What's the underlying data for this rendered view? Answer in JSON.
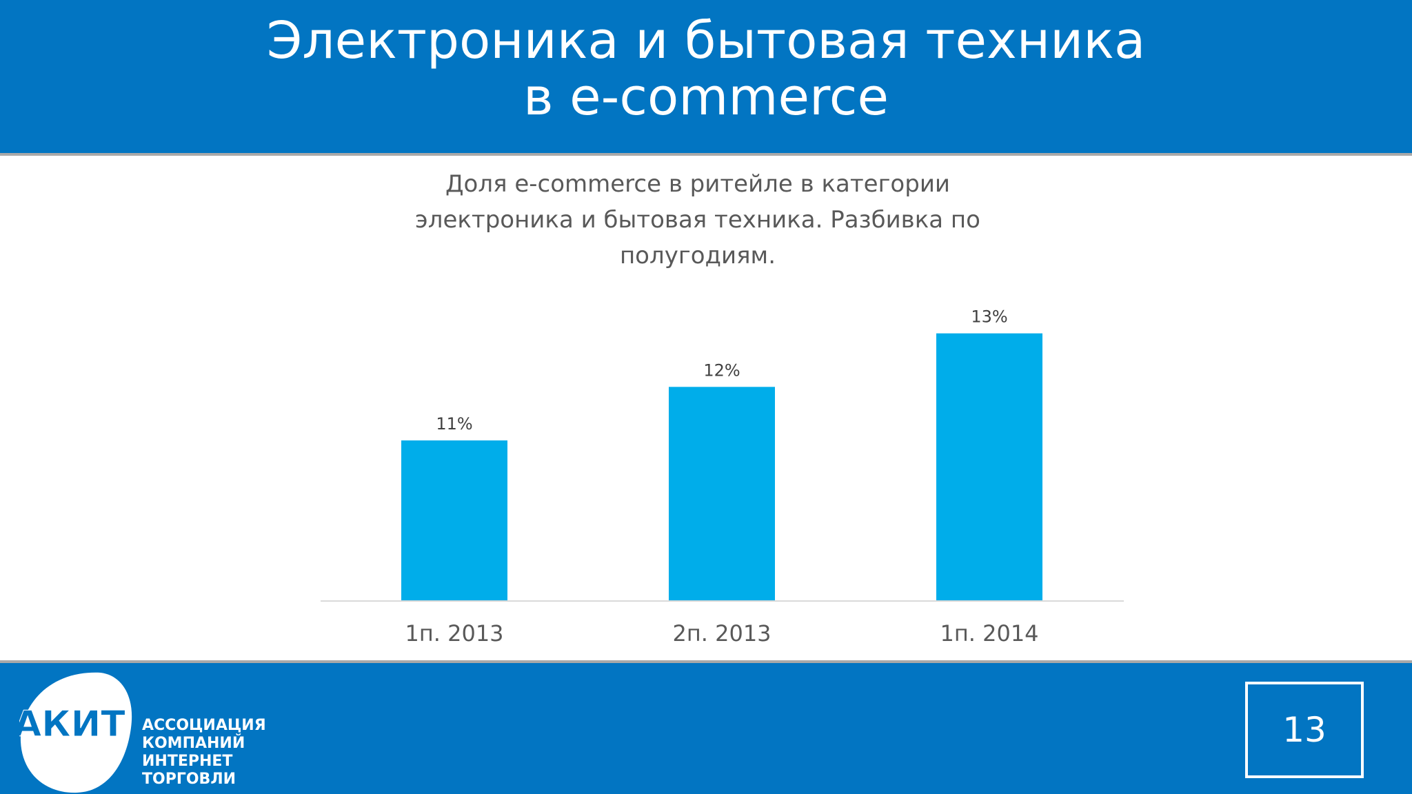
{
  "slide": {
    "title_line1": "Электроника и бытовая техника",
    "title_line2": "в e-commerce",
    "page_number": "13"
  },
  "logo": {
    "abbr": "АКИТ",
    "line1": "АССОЦИАЦИЯ",
    "line2": "КОМПАНИЙ",
    "line3": "ИНТЕРНЕТ",
    "line4": "ТОРГОВЛИ"
  },
  "colors": {
    "brand_blue": "#0275c2",
    "bar": "#00adea",
    "divider": "#a9a9a9"
  },
  "chart_data": {
    "type": "bar",
    "title_lines": [
      "Доля e-commerce в ритейле в категории",
      "электроника и бытовая техника. Разбивка по",
      "полугодиям."
    ],
    "categories": [
      "1п. 2013",
      "2п. 2013",
      "1п. 2014"
    ],
    "values": [
      11,
      12,
      13
    ],
    "data_labels": [
      "11%",
      "12%",
      "13%"
    ],
    "ylim": [
      8,
      14
    ],
    "grid": false,
    "legend": false
  }
}
